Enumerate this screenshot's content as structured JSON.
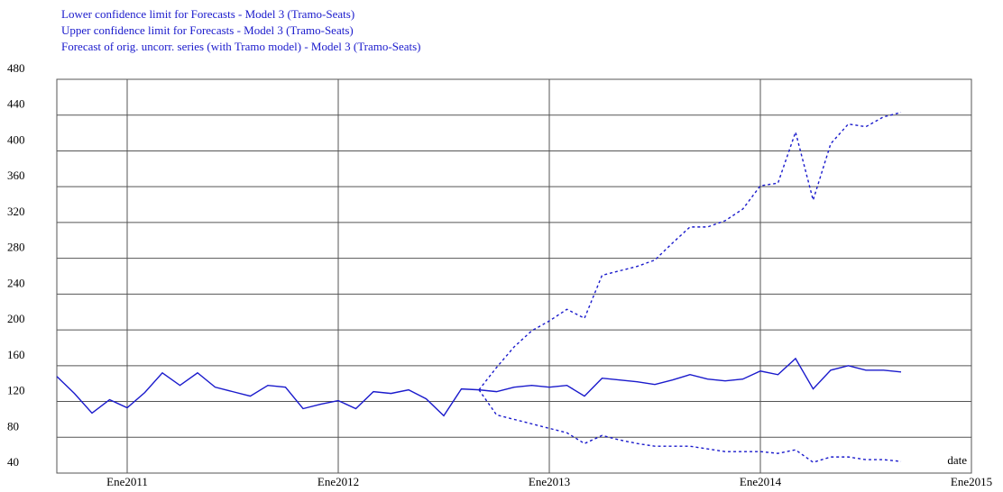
{
  "chart_data": {
    "type": "line",
    "x": [
      "2010-09",
      "2010-10",
      "2010-11",
      "2010-12",
      "2011-01",
      "2011-02",
      "2011-03",
      "2011-04",
      "2011-05",
      "2011-06",
      "2011-07",
      "2011-08",
      "2011-09",
      "2011-10",
      "2011-11",
      "2011-12",
      "2012-01",
      "2012-02",
      "2012-03",
      "2012-04",
      "2012-05",
      "2012-06",
      "2012-07",
      "2012-08",
      "2012-09",
      "2012-10",
      "2012-11",
      "2012-12",
      "2013-01",
      "2013-02",
      "2013-03",
      "2013-04",
      "2013-05",
      "2013-06",
      "2013-07",
      "2013-08",
      "2013-09",
      "2013-10",
      "2013-11",
      "2013-12",
      "2014-01",
      "2014-02",
      "2014-03",
      "2014-04",
      "2014-05",
      "2014-06",
      "2014-07",
      "2014-08",
      "2014-09"
    ],
    "series": [
      {
        "name": "Lower confidence limit for Forecasts - Model 3 (Tramo-Seats)",
        "color": "#1a1acc",
        "style": "dashed",
        "values": [
          null,
          null,
          null,
          null,
          null,
          null,
          null,
          null,
          null,
          null,
          null,
          null,
          null,
          null,
          null,
          null,
          null,
          null,
          null,
          null,
          null,
          null,
          null,
          null,
          133,
          105,
          100,
          95,
          90,
          85,
          73,
          82,
          77,
          73,
          70,
          70,
          70,
          67,
          64,
          64,
          64,
          62,
          66,
          52,
          58,
          58,
          55,
          55,
          53
        ]
      },
      {
        "name": "Upper confidence limit for Forecasts - Model 3 (Tramo-Seats)",
        "color": "#1a1acc",
        "style": "dashed",
        "values": [
          null,
          null,
          null,
          null,
          null,
          null,
          null,
          null,
          null,
          null,
          null,
          null,
          null,
          null,
          null,
          null,
          null,
          null,
          null,
          null,
          null,
          null,
          null,
          null,
          133,
          158,
          181,
          199,
          210,
          223,
          213,
          261,
          266,
          271,
          278,
          297,
          315,
          315,
          322,
          335,
          361,
          364,
          421,
          345,
          408,
          430,
          427,
          438,
          443
        ]
      },
      {
        "name": "Forecast of orig. uncorr. series (with Tramo model) - Model 3 (Tramo-Seats)",
        "color": "#1a1acc",
        "style": "solid",
        "values": [
          148,
          129,
          107,
          122,
          113,
          130,
          152,
          138,
          152,
          136,
          131,
          126,
          138,
          136,
          112,
          117,
          121,
          112,
          131,
          129,
          133,
          123,
          104,
          134,
          133,
          131,
          136,
          138,
          136,
          138,
          126,
          146,
          144,
          142,
          139,
          144,
          150,
          145,
          143,
          145,
          154,
          150,
          168,
          134,
          155,
          160,
          155,
          155,
          153
        ]
      }
    ],
    "x_label": "date",
    "xlim": [
      "2010-09",
      "2015-01"
    ],
    "xticks": [
      {
        "value": "2011-01",
        "label": "Ene2011"
      },
      {
        "value": "2012-01",
        "label": "Ene2012"
      },
      {
        "value": "2013-01",
        "label": "Ene2013"
      },
      {
        "value": "2014-01",
        "label": "Ene2014"
      },
      {
        "value": "2015-01",
        "label": "Ene2015"
      }
    ],
    "ylim": [
      40,
      480
    ],
    "yticks": [
      40,
      80,
      120,
      160,
      200,
      240,
      280,
      320,
      360,
      400,
      440,
      480
    ],
    "grid": true
  }
}
